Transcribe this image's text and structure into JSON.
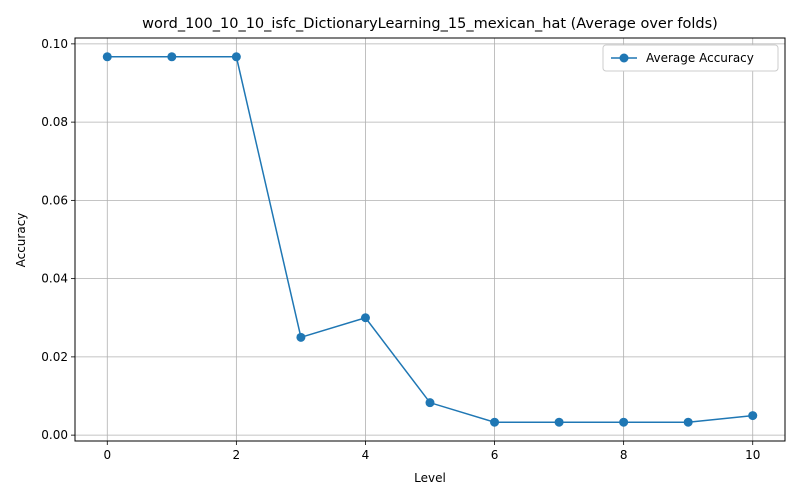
{
  "chart_data": {
    "type": "line",
    "title": "word_100_10_10_isfc_DictionaryLearning_15_mexican_hat (Average over folds)",
    "xlabel": "Level",
    "ylabel": "Accuracy",
    "xlim": [
      -0.5,
      10.5
    ],
    "ylim": [
      -0.0015,
      0.1015
    ],
    "xticks": [
      0,
      2,
      4,
      6,
      8,
      10
    ],
    "xtick_labels": [
      "0",
      "2",
      "4",
      "6",
      "8",
      "10"
    ],
    "yticks": [
      0.0,
      0.02,
      0.04,
      0.06,
      0.08,
      0.1
    ],
    "ytick_labels": [
      "0.00",
      "0.02",
      "0.04",
      "0.06",
      "0.08",
      "0.10"
    ],
    "grid": true,
    "legend_position": "top-right",
    "x": [
      0,
      1,
      2,
      3,
      4,
      5,
      6,
      7,
      8,
      9,
      10
    ],
    "series": [
      {
        "name": "Average Accuracy",
        "color": "#1f77b4",
        "marker": "circle",
        "values": [
          0.0967,
          0.0967,
          0.0967,
          0.025,
          0.03,
          0.0083,
          0.0033,
          0.0033,
          0.0033,
          0.0033,
          0.005
        ]
      }
    ]
  }
}
